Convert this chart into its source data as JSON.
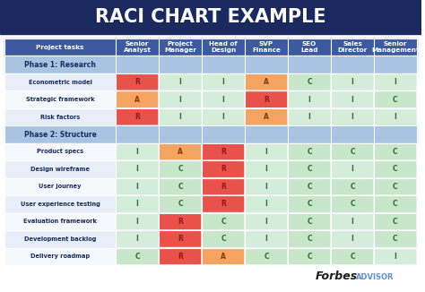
{
  "title": "RACI CHART EXAMPLE",
  "title_bg": "#1a2a5e",
  "title_color": "#ffffff",
  "header_bg": "#3d5a9e",
  "header_color": "#ffffff",
  "phase_bg": "#a8c4e0",
  "phase_color": "#1a2a5e",
  "row_bg_alt1": "#e8eef7",
  "row_bg_alt2": "#f5f8fd",
  "columns": [
    "Project tasks",
    "Senior\nAnalyst",
    "Project\nManager",
    "Head of\nDesign",
    "SVP\nFinance",
    "SEO\nLead",
    "Sales\nDirector",
    "Senior\nManagement"
  ],
  "col_widths": [
    2.2,
    0.85,
    0.85,
    0.85,
    0.85,
    0.85,
    0.85,
    0.85
  ],
  "rows": [
    {
      "label": "Phase 1: Research",
      "values": [
        "",
        "",
        "",
        "",
        "",
        "",
        ""
      ],
      "phase": true
    },
    {
      "label": "Econometric model",
      "values": [
        "R",
        "I",
        "I",
        "A",
        "C",
        "I",
        "I"
      ],
      "phase": false
    },
    {
      "label": "Strategic framework",
      "values": [
        "A",
        "I",
        "I",
        "R",
        "I",
        "I",
        "C"
      ],
      "phase": false
    },
    {
      "label": "Risk factors",
      "values": [
        "R",
        "I",
        "I",
        "A",
        "I",
        "I",
        "I"
      ],
      "phase": false
    },
    {
      "label": "Phase 2: Structure",
      "values": [
        "",
        "",
        "",
        "",
        "",
        "",
        ""
      ],
      "phase": true
    },
    {
      "label": "Product specs",
      "values": [
        "I",
        "A",
        "R",
        "I",
        "C",
        "C",
        "C"
      ],
      "phase": false
    },
    {
      "label": "Design wireframe",
      "values": [
        "I",
        "C",
        "R",
        "I",
        "C",
        "I",
        "C"
      ],
      "phase": false
    },
    {
      "label": "User journey",
      "values": [
        "I",
        "C",
        "R",
        "I",
        "C",
        "C",
        "C"
      ],
      "phase": false
    },
    {
      "label": "User experience testing",
      "values": [
        "I",
        "C",
        "R",
        "I",
        "C",
        "C",
        "C"
      ],
      "phase": false
    },
    {
      "label": "Evaluation framework",
      "values": [
        "I",
        "R",
        "C",
        "I",
        "C",
        "I",
        "C"
      ],
      "phase": false
    },
    {
      "label": "Development backlog",
      "values": [
        "I",
        "R",
        "C",
        "I",
        "C",
        "I",
        "C"
      ],
      "phase": false
    },
    {
      "label": "Delivery roadmap",
      "values": [
        "C",
        "R",
        "A",
        "C",
        "C",
        "C",
        "I"
      ],
      "phase": false
    }
  ],
  "cell_colors": {
    "R": "#e8524a",
    "A": "#f4a460",
    "C": "#c8e6c9",
    "I": "#d4edda",
    "": null
  },
  "cell_text_colors": {
    "R": "#8b1a1a",
    "A": "#7a4000",
    "C": "#2e6e2e",
    "I": "#2e6e2e",
    "": "#000000"
  },
  "forbes_text": "Forbes",
  "advisor_text": "ADVISOR"
}
